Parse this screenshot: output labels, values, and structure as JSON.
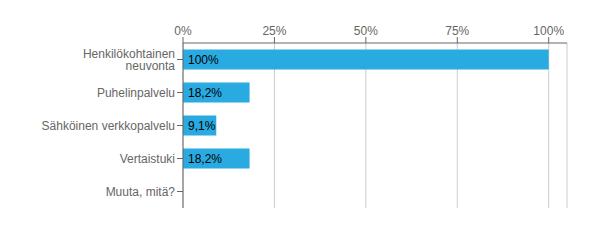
{
  "chart_data": {
    "type": "bar",
    "orientation": "horizontal",
    "categories": [
      "Muuta, mitä?",
      "Vertaistuki",
      "Sähköinen verkkopalvelu",
      "Puhelinpalvelu",
      "Henkilökohtainen neuvonta"
    ],
    "values": [
      0,
      18.2,
      9.1,
      18.2,
      100
    ],
    "value_labels": [
      null,
      "18,2%",
      "9,1%",
      "18,2%",
      "100%"
    ],
    "data_labels": true,
    "color": "#29ABE2",
    "xlim": [
      0,
      105
    ],
    "xticks": [
      {
        "value": 0,
        "label": "0%"
      },
      {
        "value": 25,
        "label": "25%"
      },
      {
        "value": 50,
        "label": "50%"
      },
      {
        "value": 75,
        "label": "75%"
      },
      {
        "value": 100,
        "label": "100%"
      }
    ],
    "grid": true
  }
}
